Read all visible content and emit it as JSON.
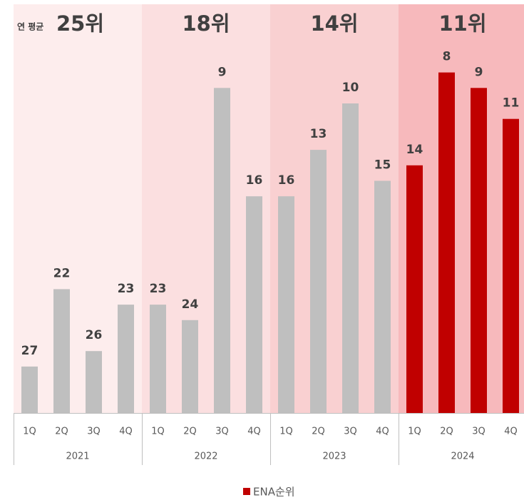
{
  "chart_data": {
    "type": "bar",
    "categories": [
      "1Q",
      "2Q",
      "3Q",
      "4Q",
      "1Q",
      "2Q",
      "3Q",
      "4Q",
      "1Q",
      "2Q",
      "3Q",
      "4Q",
      "1Q",
      "2Q",
      "3Q",
      "4Q"
    ],
    "groups": [
      "2021",
      "2022",
      "2023",
      "2024"
    ],
    "group_colors": [
      "#fdeded",
      "#fbdfe0",
      "#f9d0d1",
      "#f7b9bc"
    ],
    "annual_average": {
      "label": "연 평균",
      "values": [
        {
          "value": 25,
          "label": "25위"
        },
        {
          "value": 18,
          "label": "18위"
        },
        {
          "value": 14,
          "label": "14위"
        },
        {
          "value": 11,
          "label": "11위"
        }
      ]
    },
    "series": [
      {
        "name": "ENA순위",
        "color": "#c00000",
        "values": [
          27,
          22,
          26,
          23,
          23,
          24,
          9,
          16,
          16,
          13,
          10,
          15,
          14,
          8,
          9,
          11
        ],
        "colors": [
          "#bfbfbf",
          "#bfbfbf",
          "#bfbfbf",
          "#bfbfbf",
          "#bfbfbf",
          "#bfbfbf",
          "#bfbfbf",
          "#bfbfbf",
          "#bfbfbf",
          "#bfbfbf",
          "#bfbfbf",
          "#bfbfbf",
          "#c00000",
          "#c00000",
          "#c00000",
          "#c00000"
        ]
      }
    ],
    "ylim": [
      30,
      0
    ]
  }
}
